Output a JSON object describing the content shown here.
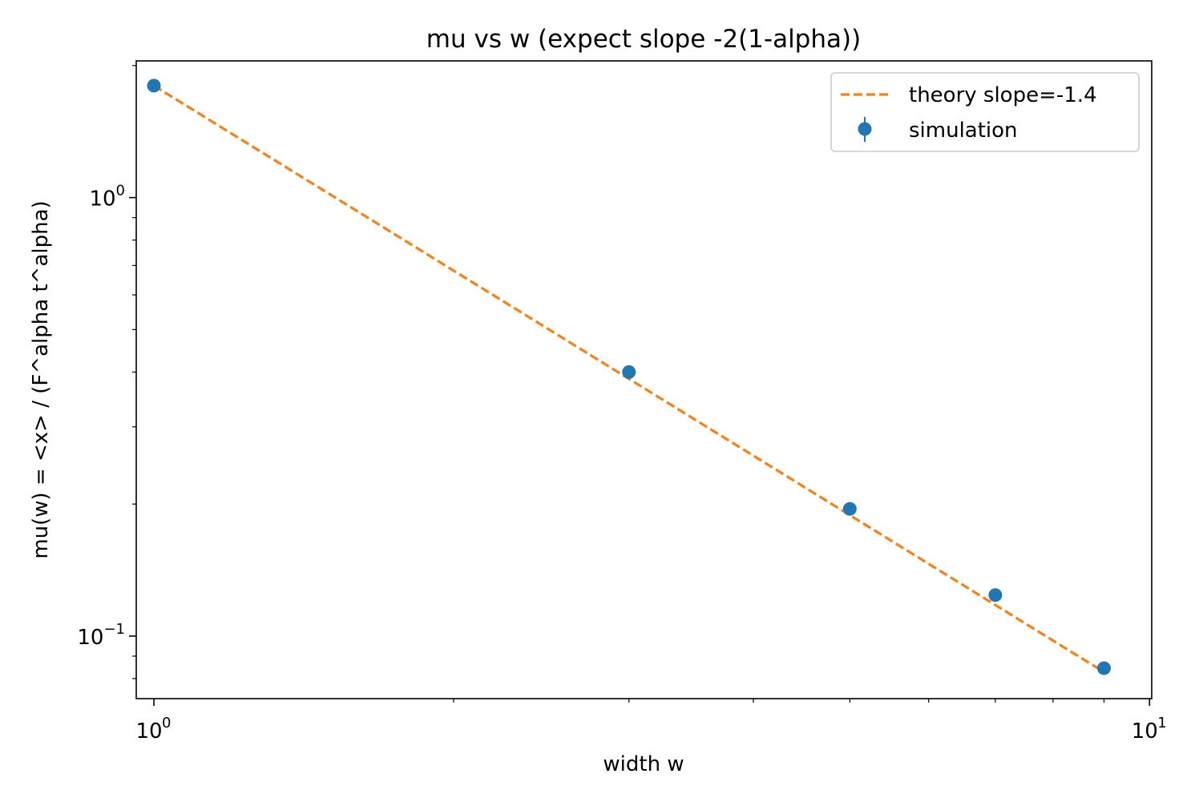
{
  "chart_data": {
    "type": "scatter",
    "title": "mu vs w (expect slope -2(1-alpha))",
    "xlabel": "width w",
    "ylabel": "mu(w) = <x> / (F^alpha t^alpha)",
    "xscale": "log",
    "yscale": "log",
    "xlim": [
      0.96,
      10.05
    ],
    "ylim": [
      0.072,
      2.05
    ],
    "x_ticks": [
      {
        "value": 1,
        "base": "10",
        "exp": "0"
      },
      {
        "value": 10,
        "base": "10",
        "exp": "1"
      }
    ],
    "y_ticks": [
      {
        "value": 1,
        "base": "10",
        "exp": "0"
      },
      {
        "value": 0.1,
        "base": "10",
        "exp": "−1"
      }
    ],
    "grid": false,
    "legend_position": "top-right",
    "series": [
      {
        "name": "theory slope=-1.4",
        "kind": "line",
        "style": "dashed",
        "color": "#ff7f0e",
        "x": [
          1,
          9
        ],
        "y": [
          1.8,
          0.0828
        ]
      },
      {
        "name": "simulation",
        "kind": "errorbar-points",
        "color": "#1f77b4",
        "x": [
          1,
          3,
          5,
          7,
          9
        ],
        "y": [
          1.8,
          0.4,
          0.195,
          0.124,
          0.0845
        ]
      }
    ]
  }
}
